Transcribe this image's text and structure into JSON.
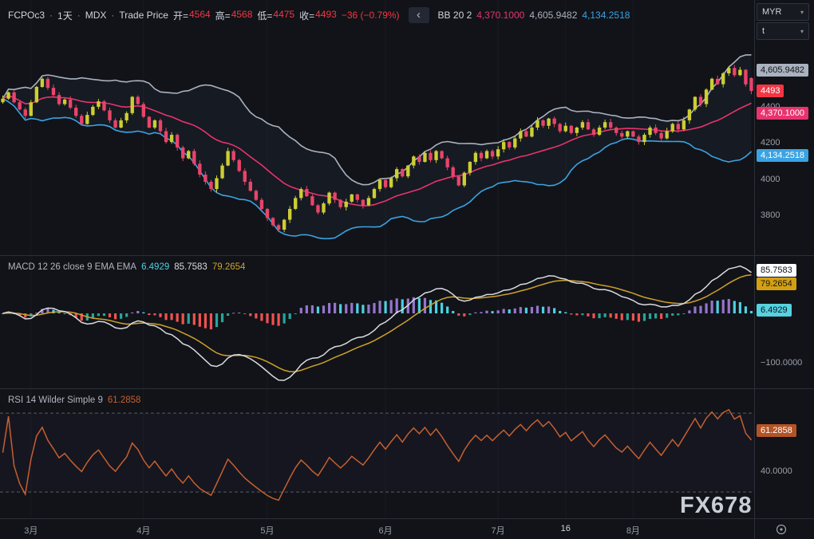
{
  "header": {
    "symbol": "FCPOc3",
    "sep": "·",
    "interval": "1天",
    "exchange": "MDX",
    "series": "Trade Price",
    "ohlc": [
      {
        "label": "开=",
        "value": "4564"
      },
      {
        "label": "高=",
        "value": "4568"
      },
      {
        "label": "低=",
        "value": "4475"
      },
      {
        "label": "收=",
        "value": "4493"
      }
    ],
    "change": "−36 (−0.79%)",
    "back_button": "‹",
    "bb": {
      "title": "BB 20 2",
      "basis": "4,370.1000",
      "upper": "4,605.9482",
      "lower": "4,134.2518"
    }
  },
  "scale_controls": {
    "currency": "MYR",
    "unit": "t",
    "caret": "▾"
  },
  "watermark": "FX678",
  "colors": {
    "background": "#111318",
    "grid": "#181b22",
    "divider": "#2a2e39",
    "text": "#9aa0aa",
    "text_bright": "#d1d4dc",
    "up": "#ccce33",
    "down": "#e9446a",
    "neg": "#f23645",
    "bb_upper": "#aab2bf",
    "bb_basis": "#e8336e",
    "bb_lower": "#3aa3e3",
    "bb_fill": "#7aa6e8",
    "macd_line": "#d8dbe0",
    "macd_signal": "#cfa12b",
    "hist_up_grow": "#9575cd",
    "hist_up_fall": "#4dd0e1",
    "hist_down_fall": "#ef5350",
    "hist_down_grow": "#26a69a",
    "rsi_line": "#c4602f",
    "rsi_band": "#7e57c2"
  },
  "chart_data": [
    {
      "type": "candlestick",
      "title": "FCPOc3 daily candles with Bollinger Bands (20, 2)",
      "y_range": [
        3584,
        4996
      ],
      "y_ticks": [
        {
          "value": 4400,
          "label": "4400"
        },
        {
          "value": 4200,
          "label": "4200"
        },
        {
          "value": 4000,
          "label": "4000"
        },
        {
          "value": 3800,
          "label": "3800"
        }
      ],
      "first_open": 4430,
      "closes": [
        4450,
        4485,
        4430,
        4390,
        4355,
        4430,
        4515,
        4560,
        4510,
        4470,
        4420,
        4445,
        4400,
        4355,
        4310,
        4360,
        4405,
        4435,
        4385,
        4330,
        4290,
        4330,
        4370,
        4460,
        4420,
        4350,
        4290,
        4330,
        4270,
        4210,
        4250,
        4180,
        4120,
        4160,
        4090,
        4030,
        3990,
        3950,
        4010,
        4080,
        4160,
        4110,
        4050,
        3990,
        3940,
        3890,
        3840,
        3790,
        3750,
        3725,
        3780,
        3840,
        3900,
        3950,
        3910,
        3860,
        3820,
        3870,
        3930,
        3890,
        3850,
        3880,
        3920,
        3890,
        3860,
        3900,
        3950,
        4000,
        3960,
        4010,
        4060,
        4020,
        4080,
        4130,
        4100,
        4150,
        4110,
        4160,
        4120,
        4070,
        4020,
        3970,
        4040,
        4100,
        4150,
        4120,
        4160,
        4130,
        4170,
        4210,
        4180,
        4230,
        4270,
        4240,
        4290,
        4330,
        4300,
        4340,
        4310,
        4270,
        4300,
        4260,
        4290,
        4320,
        4280,
        4250,
        4290,
        4320,
        4290,
        4260,
        4240,
        4270,
        4240,
        4210,
        4250,
        4290,
        4260,
        4230,
        4270,
        4310,
        4280,
        4330,
        4390,
        4460,
        4420,
        4500,
        4560,
        4530,
        4590,
        4620,
        4580,
        4610,
        4529,
        4493
      ],
      "last_candle": {
        "open": 4564,
        "high": 4568,
        "low": 4475,
        "close": 4493
      },
      "bands": {
        "period": 20,
        "stdev": 2,
        "last_upper": 4605.9482,
        "last_basis": 4370.1,
        "last_lower": 4134.2518
      },
      "badges": [
        {
          "text": "4,605.9482",
          "value": 4605.9482,
          "bg": "#aab2bf",
          "fg": "#111318"
        },
        {
          "text": "4493",
          "value": 4493,
          "bg": "#f23645",
          "fg": "#ffffff"
        },
        {
          "text": "4,370.1000",
          "value": 4370.1,
          "bg": "#e8336e",
          "fg": "#ffffff"
        },
        {
          "text": "4,134.2518",
          "value": 4134.2518,
          "bg": "#3aa3e3",
          "fg": "#ffffff"
        }
      ]
    },
    {
      "type": "macd",
      "legend": {
        "title": "MACD 12 26 close 9 EMA EMA",
        "hist": "6.4929",
        "macd": "85.7583",
        "signal": "79.2654"
      },
      "params": {
        "fast": 12,
        "slow": 26,
        "source": "close",
        "signal_smoothing": 9
      },
      "y_range": [
        -148.8,
        114.1
      ],
      "y_ticks": [
        {
          "value": -100,
          "label": "−100.0000"
        }
      ],
      "badges": [
        {
          "text": "85.7583",
          "value": 85.7583,
          "bg": "#ffffff",
          "fg": "#111318"
        },
        {
          "text": "79.2654",
          "value": 79.2654,
          "bg": "#d4a012",
          "fg": "#111318"
        },
        {
          "text": "6.4929",
          "value": 6.4929,
          "bg": "#56d1e0",
          "fg": "#111318"
        }
      ]
    },
    {
      "type": "rsi",
      "legend": {
        "title": "RSI 14 Wilder Simple 9",
        "value": "61.2858"
      },
      "params": {
        "period": 14,
        "smoothing": "Simple 9"
      },
      "levels": [
        70,
        30
      ],
      "y_range": [
        16.7,
        82.2
      ],
      "y_ticks": [
        {
          "value": 40,
          "label": "40.0000"
        }
      ],
      "badges": [
        {
          "text": "61.2858",
          "value": 61.2858,
          "bg": "#b35427",
          "fg": "#ffffff"
        }
      ]
    }
  ],
  "time_axis": {
    "labels": [
      {
        "text": "3月",
        "bar": 5
      },
      {
        "text": "4月",
        "bar": 25
      },
      {
        "text": "5月",
        "bar": 47
      },
      {
        "text": "6月",
        "bar": 68
      },
      {
        "text": "7月",
        "bar": 88
      },
      {
        "text": "16",
        "bar": 100,
        "bright": true
      },
      {
        "text": "8月",
        "bar": 112
      }
    ]
  }
}
